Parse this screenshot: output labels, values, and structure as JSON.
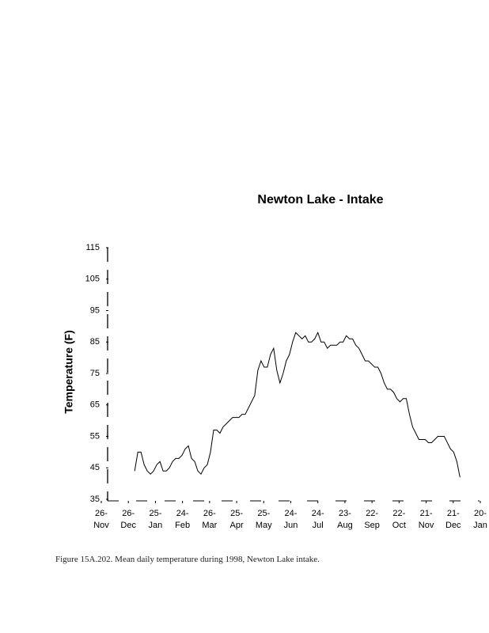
{
  "chart_data": {
    "type": "line",
    "title": "Newton Lake - Intake",
    "y_label": "Temperature (F)",
    "caption": "Figure 15A.202. Mean daily temperature during 1998, Newton Lake intake.",
    "color": "#000000",
    "x": [
      37,
      40.5,
      44,
      47.5,
      51,
      54.5,
      58,
      61.5,
      65,
      68.5,
      72,
      75.5,
      79,
      82.5,
      86,
      89.5,
      93,
      96.5,
      100,
      103.5,
      107,
      110.5,
      114,
      117.5,
      121,
      124.5,
      128,
      131.5,
      135,
      138.5,
      142,
      145.5,
      149,
      152.5,
      156,
      159.5,
      163,
      166.5,
      170,
      173.5,
      177,
      180.5,
      184,
      187.5,
      191,
      194.5,
      198,
      201.5,
      205,
      208.5,
      212,
      215.5,
      219,
      222.5,
      226,
      229.5,
      233,
      236.5,
      240,
      243.5,
      247,
      250.5,
      254,
      257.5,
      261,
      264.5,
      268,
      271.5,
      275,
      278.5,
      282,
      285.5,
      289,
      292.5,
      296,
      299.5,
      303,
      306.5,
      310,
      313.5,
      317,
      320.5,
      324,
      327.5,
      331,
      334.5,
      338,
      341.5,
      345,
      348.5,
      352,
      355.5,
      359,
      362.5,
      366,
      369.5,
      373,
      376.5,
      380,
      383.5,
      387,
      390.5,
      394,
      397.5
    ],
    "values": [
      44,
      50,
      50,
      46,
      44,
      43,
      44,
      46,
      47,
      44,
      44,
      45,
      47,
      48,
      48,
      49,
      51,
      52,
      48,
      47,
      44,
      43,
      45,
      46,
      50,
      57,
      57,
      56,
      58,
      59,
      60,
      61,
      61,
      61,
      62,
      62,
      64,
      66,
      68,
      76,
      79,
      77,
      77,
      81,
      83,
      76,
      72,
      75,
      79,
      81,
      85,
      88,
      87,
      86,
      87,
      85,
      85,
      86,
      88,
      85,
      85,
      83,
      84,
      84,
      84,
      85,
      85,
      87,
      86,
      86,
      84,
      83,
      81,
      79,
      79,
      78,
      77,
      77,
      75,
      72,
      70,
      70,
      69,
      67,
      66,
      67,
      67,
      62,
      58,
      56,
      54,
      54,
      54,
      53,
      53,
      54,
      55,
      55,
      55,
      53,
      51,
      50,
      47,
      42
    ],
    "xlim": [
      0,
      420
    ],
    "xticks": [
      {
        "value": 0,
        "label": "26-Nov"
      },
      {
        "value": 30,
        "label": "26-Dec"
      },
      {
        "value": 60,
        "label": "25-Jan"
      },
      {
        "value": 90,
        "label": "24-Feb"
      },
      {
        "value": 120,
        "label": "26-Mar"
      },
      {
        "value": 150,
        "label": "25-Apr"
      },
      {
        "value": 180,
        "label": "25-May"
      },
      {
        "value": 210,
        "label": "24-Jun"
      },
      {
        "value": 240,
        "label": "24-Jul"
      },
      {
        "value": 270,
        "label": "23-Aug"
      },
      {
        "value": 300,
        "label": "22-Sep"
      },
      {
        "value": 330,
        "label": "22-Oct"
      },
      {
        "value": 360,
        "label": "21-Nov"
      },
      {
        "value": 390,
        "label": "21-Dec"
      },
      {
        "value": 420,
        "label": "20-Jan"
      }
    ],
    "ylim": [
      35,
      115
    ],
    "yticks": [
      35,
      45,
      55,
      65,
      75,
      85,
      95,
      105,
      115
    ],
    "grid": false
  }
}
